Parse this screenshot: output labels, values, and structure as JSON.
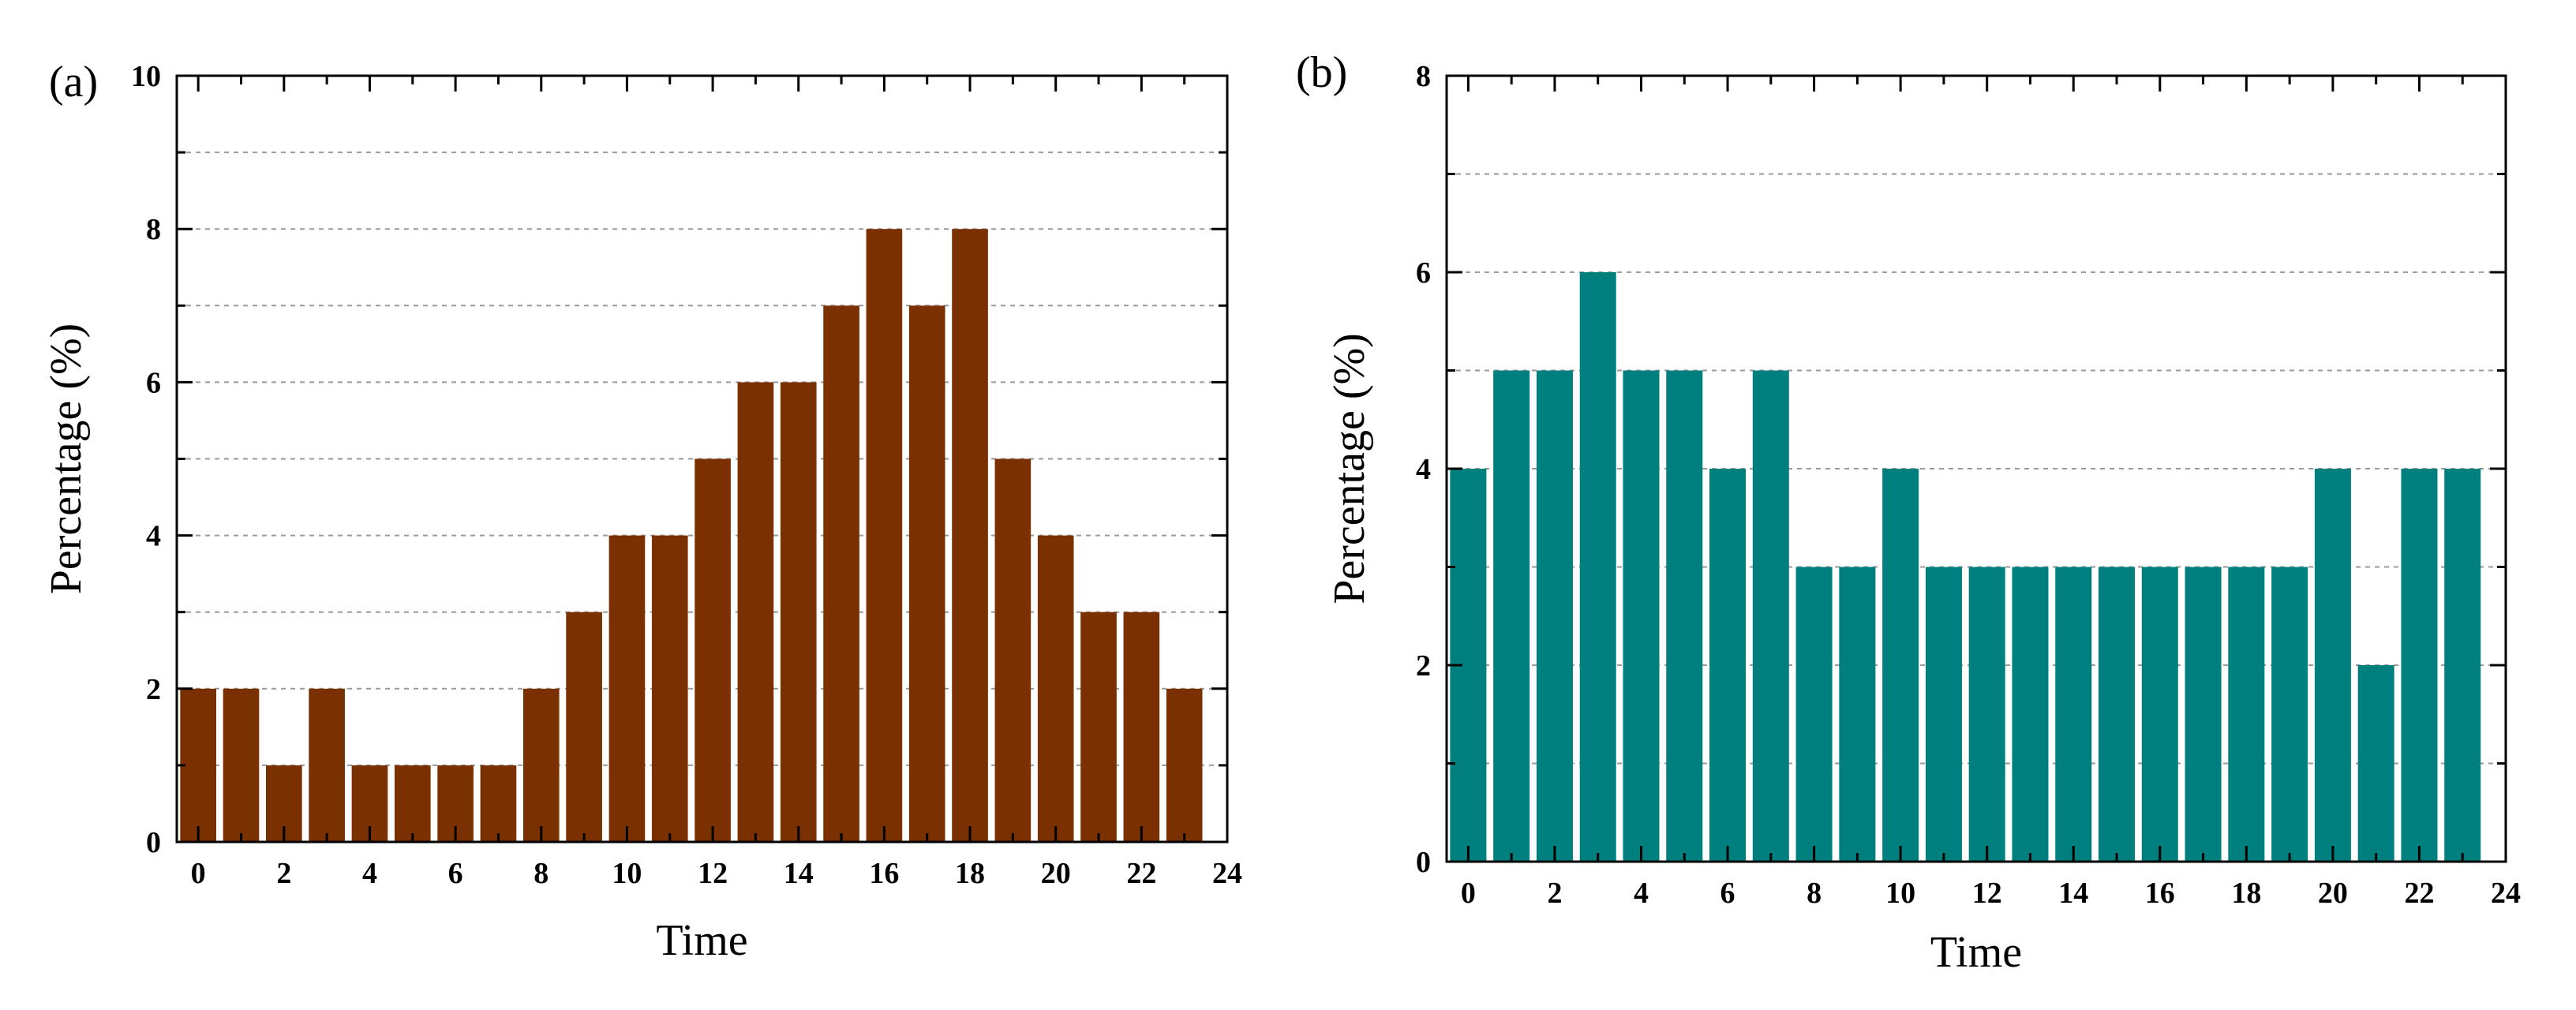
{
  "chart_data": [
    {
      "type": "bar",
      "panel_label": "(a)",
      "xlabel": "Time",
      "ylabel": "Percentage (%)",
      "color": "#7a3000",
      "x": [
        0,
        1,
        2,
        3,
        4,
        5,
        6,
        7,
        8,
        9,
        10,
        11,
        12,
        13,
        14,
        15,
        16,
        17,
        18,
        19,
        20,
        21,
        22,
        23
      ],
      "values": [
        2,
        2,
        1,
        2,
        1,
        1,
        1,
        1,
        2,
        3,
        4,
        4,
        5,
        6,
        6,
        7,
        8,
        7,
        8,
        5,
        4,
        3,
        3,
        2
      ],
      "xlim": [
        -0.5,
        24
      ],
      "ylim": [
        0,
        10
      ],
      "xticks": [
        0,
        2,
        4,
        6,
        8,
        10,
        12,
        14,
        16,
        18,
        20,
        22,
        24
      ],
      "xtick_labels": [
        "0",
        "2",
        "4",
        "6",
        "8",
        "10",
        "12",
        "14",
        "16",
        "18",
        "20",
        "22",
        "24"
      ],
      "yticks": [
        0,
        2,
        4,
        6,
        8,
        10
      ],
      "ytick_labels": [
        "0",
        "2",
        "4",
        "6",
        "8",
        "10"
      ],
      "grid": true
    },
    {
      "type": "bar",
      "panel_label": "(b)",
      "xlabel": "Time",
      "ylabel": "Percentage (%)",
      "color": "#007f7f",
      "x": [
        0,
        1,
        2,
        3,
        4,
        5,
        6,
        7,
        8,
        9,
        10,
        11,
        12,
        13,
        14,
        15,
        16,
        17,
        18,
        19,
        20,
        21,
        22,
        23
      ],
      "values": [
        4,
        5,
        5,
        6,
        5,
        5,
        4,
        5,
        3,
        3,
        4,
        3,
        3,
        3,
        3,
        3,
        3,
        3,
        3,
        3,
        4,
        2,
        4,
        4
      ],
      "xlim": [
        -0.5,
        24
      ],
      "ylim": [
        0,
        8
      ],
      "xticks": [
        0,
        2,
        4,
        6,
        8,
        10,
        12,
        14,
        16,
        18,
        20,
        22,
        24
      ],
      "xtick_labels": [
        "0",
        "2",
        "4",
        "6",
        "8",
        "10",
        "12",
        "14",
        "16",
        "18",
        "20",
        "22",
        "24"
      ],
      "yticks": [
        0,
        2,
        4,
        6,
        8
      ],
      "ytick_labels": [
        "0",
        "2",
        "4",
        "6",
        "8"
      ],
      "grid": true
    }
  ]
}
